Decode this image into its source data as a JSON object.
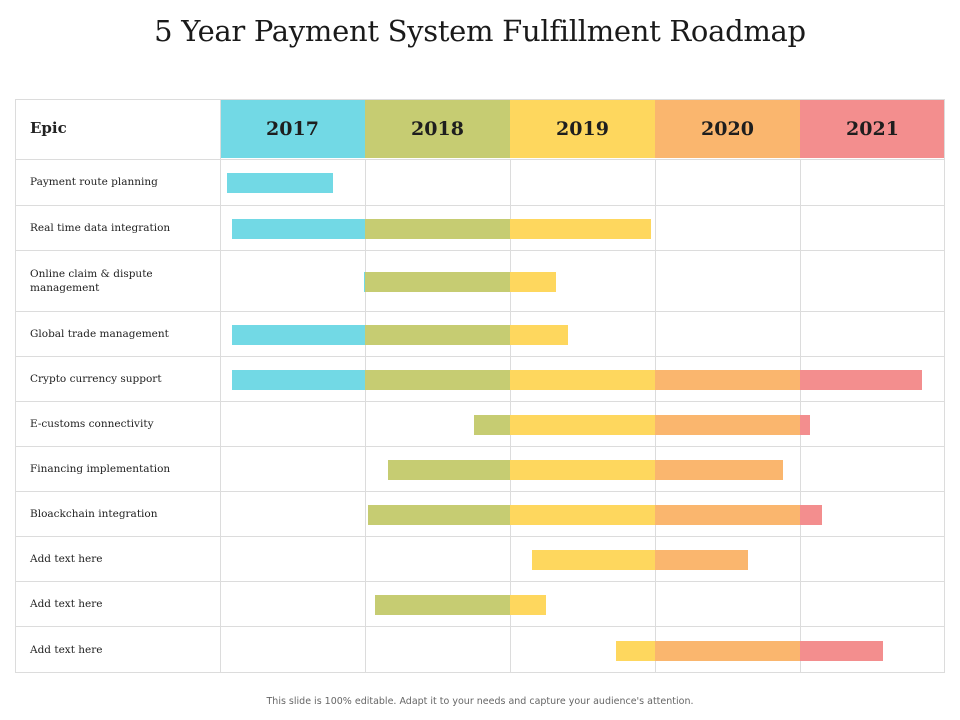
{
  "title": "5 Year Payment System Fulfillment Roadmap",
  "footer": "This slide is 100% editable.  Adapt it to your needs and capture your audience's attention.",
  "header": {
    "epic_label": "Epic",
    "years": [
      {
        "label": "2017",
        "color": "#72D9E5"
      },
      {
        "label": "2018",
        "color": "#C6CC72"
      },
      {
        "label": "2019",
        "color": "#FED75E"
      },
      {
        "label": "2020",
        "color": "#FAB66E"
      },
      {
        "label": "2021",
        "color": "#F38E8E"
      }
    ]
  },
  "rows": [
    {
      "label": "Payment route planning",
      "start": 2017.05,
      "end": 2017.78
    },
    {
      "label": "Real time data integration",
      "start": 2017.08,
      "end": 2019.97
    },
    {
      "label": "Online claim & dispute management",
      "start": 2017.99,
      "end": 2019.32
    },
    {
      "label": "Global trade management",
      "start": 2017.08,
      "end": 2019.4
    },
    {
      "label": "Crypto currency support",
      "start": 2017.08,
      "end": 2021.84
    },
    {
      "label": "E-customs connectivity",
      "start": 2018.75,
      "end": 2021.07
    },
    {
      "label": "Financing implementation",
      "start": 2018.16,
      "end": 2020.88
    },
    {
      "label": "Bloackchain integration",
      "start": 2018.02,
      "end": 2021.15
    },
    {
      "label": "Add text here",
      "start": 2019.15,
      "end": 2020.64
    },
    {
      "label": "Add text here",
      "start": 2018.07,
      "end": 2019.25
    },
    {
      "label": "Add text here",
      "start": 2019.73,
      "end": 2021.57
    }
  ]
}
